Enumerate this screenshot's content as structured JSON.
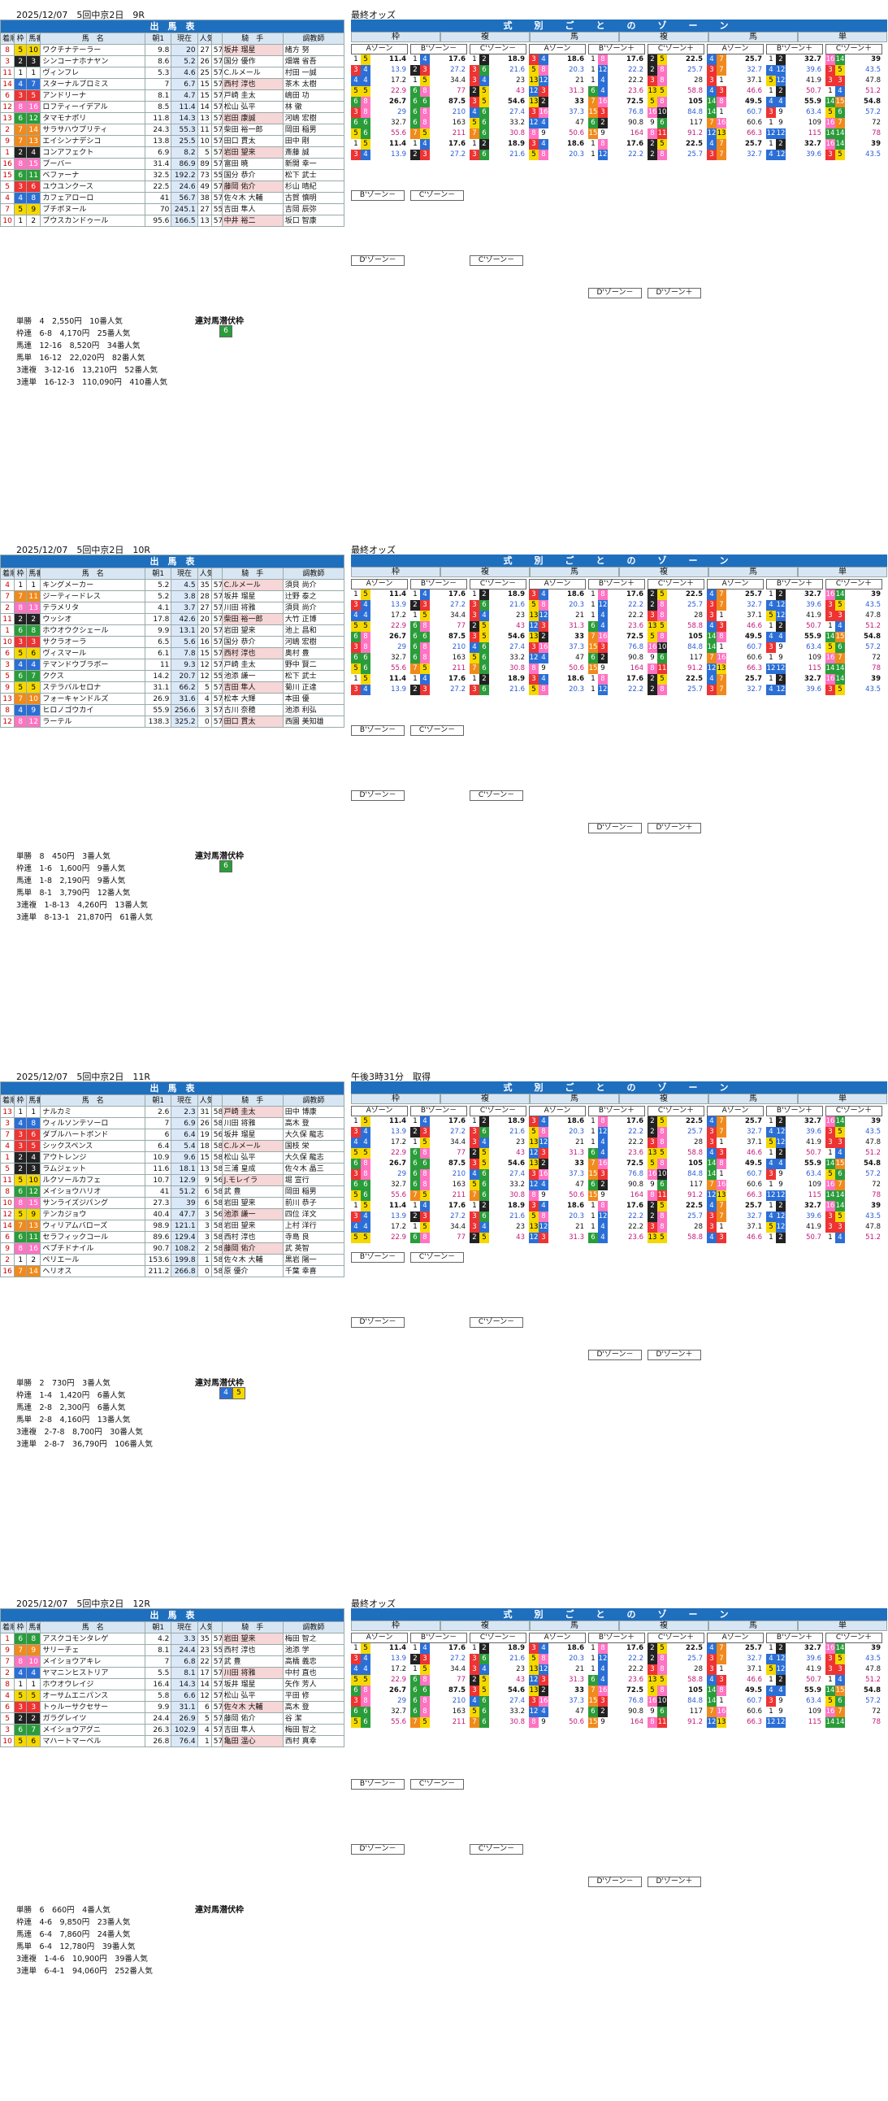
{
  "races": [
    {
      "date_title": "2025/12/07　5回中京2日　9R",
      "right_head": "最終オッズ",
      "entry_title": "出　馬　表",
      "col_labels": {
        "arrive": "着順",
        "frame": "枠",
        "num": "馬番",
        "horse": "馬　名",
        "odds": "単勝オッズ",
        "odds_early": "朝1",
        "odds_now": "現在",
        "pop": "人気",
        "jockey": "騎　手",
        "trainer": "調教師"
      },
      "rows": [
        {
          "arr": "8",
          "f": "5",
          "n": "10",
          "h": "ワクチナテーラー",
          "a": "9.8",
          "b": "20",
          "p": "27",
          "w": "57",
          "j": "坂井 瑠星",
          "t": "緒方 努"
        },
        {
          "arr": "3",
          "f": "2",
          "n": "3",
          "h": "シンコーナホナヤン",
          "a": "8.6",
          "b": "5.2",
          "p": "26",
          "w": "57",
          "j": "国分 優作",
          "t": "畑端 省吾"
        },
        {
          "arr": "11",
          "f": "1",
          "n": "1",
          "h": "ヴィンフレ",
          "a": "5.3",
          "b": "4.6",
          "p": "25",
          "w": "57",
          "j": "C.ルメール",
          "t": "村田 一誠"
        },
        {
          "arr": "14",
          "f": "4",
          "n": "7",
          "h": "スターナルブロミス",
          "a": "7",
          "b": "6.7",
          "p": "15",
          "w": "57",
          "j": "西村 淳也",
          "t": "茶木 太樹"
        },
        {
          "arr": "6",
          "f": "3",
          "n": "5",
          "h": "アンドリーナ",
          "a": "8.1",
          "b": "4.7",
          "p": "15",
          "w": "57",
          "j": "戸崎 圭太",
          "t": "嶋田 功"
        },
        {
          "arr": "12",
          "f": "8",
          "n": "16",
          "h": "ロフティーイデアル",
          "a": "8.5",
          "b": "11.4",
          "p": "14",
          "w": "57",
          "j": "松山 弘平",
          "t": "林 徹"
        },
        {
          "arr": "13",
          "f": "6",
          "n": "12",
          "h": "タマモナポリ",
          "a": "11.8",
          "b": "14.3",
          "p": "13",
          "w": "57",
          "j": "岩田 康誠",
          "t": "河嶋 宏樹"
        },
        {
          "arr": "2",
          "f": "7",
          "n": "14",
          "h": "サラサハウプリティ",
          "a": "24.3",
          "b": "55.3",
          "p": "11",
          "w": "57",
          "j": "柴田 裕一郎",
          "t": "岡田 稲男"
        },
        {
          "arr": "9",
          "f": "7",
          "n": "13",
          "h": "エイシンナデシコ",
          "a": "13.8",
          "b": "25.5",
          "p": "10",
          "w": "57",
          "j": "田口 貫太",
          "t": "田中 剛"
        },
        {
          "arr": "1",
          "f": "2",
          "n": "4",
          "h": "コンアフェクト",
          "a": "6.9",
          "b": "8.2",
          "p": "5",
          "w": "57",
          "j": "岩田 望来",
          "t": "斎藤 誠"
        },
        {
          "arr": "16",
          "f": "8",
          "n": "15",
          "h": "ブーバー",
          "a": "31.4",
          "b": "86.9",
          "p": "89",
          "w": "57",
          "j": "富田 暁",
          "t": "新開 幸一"
        },
        {
          "arr": "15",
          "f": "6",
          "n": "11",
          "h": "ベファーナ",
          "a": "32.5",
          "b": "192.2",
          "p": "73",
          "w": "55",
          "j": "国分 恭介",
          "t": "松下 武士"
        },
        {
          "arr": "5",
          "f": "3",
          "n": "6",
          "h": "ユウユンクース",
          "a": "22.5",
          "b": "24.6",
          "p": "49",
          "w": "57",
          "j": "藤岡 佑介",
          "t": "杉山 晴紀"
        },
        {
          "arr": "4",
          "f": "4",
          "n": "8",
          "h": "カフェアローロ",
          "a": "41",
          "b": "56.7",
          "p": "38",
          "w": "57",
          "j": "佐々木 大輔",
          "t": "古賀 慎明"
        },
        {
          "arr": "7",
          "f": "5",
          "n": "9",
          "h": "ブチボヌール",
          "a": "70",
          "b": "245.1",
          "p": "27",
          "w": "55",
          "j": "吉田 隼人",
          "t": "吉岡 辰弥"
        },
        {
          "arr": "10",
          "f": "1",
          "n": "2",
          "h": "ブウスカンドゥール",
          "a": "95.6",
          "b": "166.5",
          "p": "13",
          "w": "57",
          "j": "中井 裕二",
          "t": "坂口 智康"
        }
      ],
      "results": [
        "単勝　4　2,550円　10番人気",
        "枠連　6-8　4,170円　25番人気",
        "馬連　12-16　8,520円　34番人気",
        "馬単　16-12　22,020円　82番人気",
        "3連複　3-12-16　13,210円　52番人気",
        "3連単　16-12-3　110,090円　410番人気"
      ],
      "bracket_label": "連対馬潜伏枠",
      "bracket_vals": [
        "6"
      ]
    },
    {
      "date_title": "2025/12/07　5回中京2日　10R",
      "right_head": "最終オッズ",
      "entry_title": "出　馬　表",
      "col_labels": {
        "arrive": "着順",
        "frame": "枠",
        "num": "馬番",
        "horse": "馬　名",
        "odds": "単勝オッズ",
        "odds_early": "朝1",
        "odds_now": "現在",
        "pop": "人気",
        "jockey": "騎　手",
        "trainer": "調教師"
      },
      "rows": [
        {
          "arr": "4",
          "f": "1",
          "n": "1",
          "h": "キングメーカー",
          "a": "5.2",
          "b": "4.5",
          "p": "35",
          "w": "57",
          "j": "C.ルメール",
          "t": "須貝 尚介"
        },
        {
          "arr": "7",
          "f": "7",
          "n": "11",
          "h": "ジーティードレス",
          "a": "5.2",
          "b": "3.8",
          "p": "28",
          "w": "57",
          "j": "坂井 瑠星",
          "t": "辻野 泰之"
        },
        {
          "arr": "2",
          "f": "8",
          "n": "13",
          "h": "テラメリタ",
          "a": "4.1",
          "b": "3.7",
          "p": "27",
          "w": "57",
          "j": "川田 将雅",
          "t": "須貝 尚介"
        },
        {
          "arr": "11",
          "f": "2",
          "n": "2",
          "h": "ウッシオ",
          "a": "17.8",
          "b": "42.6",
          "p": "20",
          "w": "57",
          "j": "柴田 裕一郎",
          "t": "大竹 正博"
        },
        {
          "arr": "1",
          "f": "6",
          "n": "8",
          "h": "ホウオウクシェール",
          "a": "9.9",
          "b": "13.1",
          "p": "20",
          "w": "57",
          "j": "岩田 望来",
          "t": "池上 昌和"
        },
        {
          "arr": "10",
          "f": "3",
          "n": "3",
          "h": "サクラオーラ",
          "a": "6.5",
          "b": "5.6",
          "p": "16",
          "w": "57",
          "j": "国分 恭介",
          "t": "河嶋 宏樹"
        },
        {
          "arr": "6",
          "f": "5",
          "n": "6",
          "h": "ヴィスマール",
          "a": "6.1",
          "b": "7.8",
          "p": "15",
          "w": "57",
          "j": "西村 淳也",
          "t": "奥村 豊"
        },
        {
          "arr": "3",
          "f": "4",
          "n": "4",
          "h": "テマンドウブラボー",
          "a": "11",
          "b": "9.3",
          "p": "12",
          "w": "57",
          "j": "戸崎 圭太",
          "t": "野中 賢二"
        },
        {
          "arr": "5",
          "f": "6",
          "n": "7",
          "h": "ククス",
          "a": "14.2",
          "b": "20.7",
          "p": "12",
          "w": "55",
          "j": "池添 謙一",
          "t": "松下 武士"
        },
        {
          "arr": "9",
          "f": "5",
          "n": "5",
          "h": "ステラバルセロナ",
          "a": "31.1",
          "b": "66.2",
          "p": "5",
          "w": "57",
          "j": "吉田 隼人",
          "t": "菊川 正達"
        },
        {
          "arr": "13",
          "f": "7",
          "n": "10",
          "h": "フォーキャンドルズ",
          "a": "26.9",
          "b": "31.6",
          "p": "4",
          "w": "57",
          "j": "松本 大輝",
          "t": "本田 優"
        },
        {
          "arr": "8",
          "f": "4",
          "n": "9",
          "h": "ヒロノゴウカイ",
          "a": "55.9",
          "b": "256.6",
          "p": "3",
          "w": "57",
          "j": "古川 奈穂",
          "t": "池添 利弘"
        },
        {
          "arr": "12",
          "f": "8",
          "n": "12",
          "h": "ラーテル",
          "a": "138.3",
          "b": "325.2",
          "p": "0",
          "w": "57",
          "j": "田口 貫太",
          "t": "西園 美知雄"
        }
      ],
      "results": [
        "単勝　8　450円　3番人気",
        "枠連　1-6　1,600円　9番人気",
        "馬連　1-8　2,190円　9番人気",
        "馬単　8-1　3,790円　12番人気",
        "3連複　1-8-13　4,260円　13番人気",
        "3連単　8-13-1　21,870円　61番人気"
      ],
      "bracket_label": "連対馬潜伏枠",
      "bracket_vals": [
        "6"
      ]
    },
    {
      "date_title": "2025/12/07　5回中京2日　11R",
      "right_head": "午後3時31分　取得",
      "entry_title": "出　馬　表",
      "col_labels": {
        "arrive": "着順",
        "frame": "枠",
        "num": "馬番",
        "horse": "馬　名",
        "odds": "単勝オッズ",
        "odds_early": "朝1",
        "odds_now": "現在",
        "pop": "人気",
        "jockey": "騎　手",
        "trainer": "調教師"
      },
      "rows": [
        {
          "arr": "13",
          "f": "1",
          "n": "1",
          "h": "ナルカミ",
          "a": "2.6",
          "b": "2.3",
          "p": "31",
          "w": "58",
          "j": "戸崎 圭太",
          "t": "田中 博康"
        },
        {
          "arr": "3",
          "f": "4",
          "n": "8",
          "h": "ウィルソンテソーロ",
          "a": "7",
          "b": "6.9",
          "p": "26",
          "w": "58",
          "j": "川田 将雅",
          "t": "高木 登"
        },
        {
          "arr": "7",
          "f": "3",
          "n": "6",
          "h": "ダブルハートボンド",
          "a": "6",
          "b": "6.4",
          "p": "19",
          "w": "56",
          "j": "坂井 瑠星",
          "t": "大久保 龍志"
        },
        {
          "arr": "4",
          "f": "3",
          "n": "5",
          "h": "シックスペンス",
          "a": "6.4",
          "b": "5.4",
          "p": "18",
          "w": "58",
          "j": "C.ルメール",
          "t": "国枝 栄"
        },
        {
          "arr": "1",
          "f": "2",
          "n": "4",
          "h": "アウトレンジ",
          "a": "10.9",
          "b": "9.6",
          "p": "15",
          "w": "58",
          "j": "松山 弘平",
          "t": "大久保 龍志"
        },
        {
          "arr": "5",
          "f": "2",
          "n": "3",
          "h": "ラムジェット",
          "a": "11.6",
          "b": "18.1",
          "p": "13",
          "w": "58",
          "j": "三浦 皇成",
          "t": "佐々木 晶三"
        },
        {
          "arr": "11",
          "f": "5",
          "n": "10",
          "h": "ルクソールカフェ",
          "a": "10.7",
          "b": "12.9",
          "p": "9",
          "w": "56",
          "j": "J.モレイラ",
          "t": "堀 宣行"
        },
        {
          "arr": "8",
          "f": "6",
          "n": "12",
          "h": "メイショウハリオ",
          "a": "41",
          "b": "51.2",
          "p": "6",
          "w": "58",
          "j": "武 豊",
          "t": "岡田 稲男"
        },
        {
          "arr": "10",
          "f": "8",
          "n": "15",
          "h": "サンライズジパング",
          "a": "27.3",
          "b": "39",
          "p": "6",
          "w": "58",
          "j": "岩田 望来",
          "t": "前川 恭子"
        },
        {
          "arr": "12",
          "f": "5",
          "n": "9",
          "h": "テンカジョウ",
          "a": "40.4",
          "b": "47.7",
          "p": "3",
          "w": "56",
          "j": "池添 謙一",
          "t": "四位 洋文"
        },
        {
          "arr": "14",
          "f": "7",
          "n": "13",
          "h": "ウィリアムバローズ",
          "a": "98.9",
          "b": "121.1",
          "p": "3",
          "w": "58",
          "j": "岩田 望来",
          "t": "上村 洋行"
        },
        {
          "arr": "6",
          "f": "6",
          "n": "11",
          "h": "セラフィックコール",
          "a": "89.6",
          "b": "129.4",
          "p": "3",
          "w": "58",
          "j": "西村 淳也",
          "t": "寺島 良"
        },
        {
          "arr": "9",
          "f": "8",
          "n": "16",
          "h": "ペプチドナイル",
          "a": "90.7",
          "b": "108.2",
          "p": "2",
          "w": "58",
          "j": "藤岡 佑介",
          "t": "武 英智"
        },
        {
          "arr": "2",
          "f": "1",
          "n": "2",
          "h": "ペリエール",
          "a": "153.6",
          "b": "199.8",
          "p": "1",
          "w": "58",
          "j": "佐々木 大輔",
          "t": "黒岩 陽一"
        },
        {
          "arr": "16",
          "f": "7",
          "n": "14",
          "h": "ヘリオス",
          "a": "211.2",
          "b": "266.8",
          "p": "0",
          "w": "58",
          "j": "原 優介",
          "t": "千葉 幸喜"
        }
      ],
      "results": [
        "単勝　2　730円　3番人気",
        "枠連　1-4　1,420円　6番人気",
        "馬連　2-8　2,300円　6番人気",
        "馬単　2-8　4,160円　13番人気",
        "3連複　2-7-8　8,700円　30番人気",
        "3連単　2-8-7　36,790円　106番人気"
      ],
      "bracket_label": "連対馬潜伏枠",
      "bracket_vals": [
        "4",
        "5"
      ]
    },
    {
      "date_title": "2025/12/07　5回中京2日　12R",
      "right_head": "最終オッズ",
      "entry_title": "出　馬　表",
      "col_labels": {
        "arrive": "着順",
        "frame": "枠",
        "num": "馬番",
        "horse": "馬　名",
        "odds": "単勝オッズ",
        "odds_early": "朝1",
        "odds_now": "現在",
        "pop": "人気",
        "jockey": "騎　手",
        "trainer": "調教師"
      },
      "rows": [
        {
          "arr": "1",
          "f": "6",
          "n": "8",
          "h": "アスクコモンタレゲ",
          "a": "4.2",
          "b": "3.3",
          "p": "35",
          "w": "57",
          "j": "岩田 望来",
          "t": "梅田 智之"
        },
        {
          "arr": "9",
          "f": "7",
          "n": "9",
          "h": "サリーチェ",
          "a": "8.1",
          "b": "24.4",
          "p": "23",
          "w": "55",
          "j": "西村 淳也",
          "t": "池添 学"
        },
        {
          "arr": "7",
          "f": "8",
          "n": "10",
          "h": "メイショウアキレ",
          "a": "7",
          "b": "6.8",
          "p": "22",
          "w": "57",
          "j": "武 豊",
          "t": "高橋 義忠"
        },
        {
          "arr": "2",
          "f": "4",
          "n": "4",
          "h": "ヤマニンヒストリア",
          "a": "5.5",
          "b": "8.1",
          "p": "17",
          "w": "57",
          "j": "川田 将雅",
          "t": "中村 直也"
        },
        {
          "arr": "8",
          "f": "1",
          "n": "1",
          "h": "ホウオウレイジ",
          "a": "16.4",
          "b": "14.3",
          "p": "14",
          "w": "57",
          "j": "坂井 瑠星",
          "t": "矢作 芳人"
        },
        {
          "arr": "4",
          "f": "5",
          "n": "5",
          "h": "オーサムエニパンス",
          "a": "5.8",
          "b": "6.6",
          "p": "12",
          "w": "57",
          "j": "松山 弘平",
          "t": "平田 修"
        },
        {
          "arr": "6",
          "f": "3",
          "n": "3",
          "h": "トゥルーサクセサー",
          "a": "9.9",
          "b": "31.1",
          "p": "6",
          "w": "57",
          "j": "佐々木 大輔",
          "t": "高木 登"
        },
        {
          "arr": "5",
          "f": "2",
          "n": "2",
          "h": "ガラグレイツ",
          "a": "24.4",
          "b": "26.9",
          "p": "5",
          "w": "57",
          "j": "藤岡 佑介",
          "t": "谷 潔"
        },
        {
          "arr": "3",
          "f": "6",
          "n": "7",
          "h": "メイショウアグニ",
          "a": "26.3",
          "b": "102.9",
          "p": "4",
          "w": "57",
          "j": "吉田 隼人",
          "t": "梅田 智之"
        },
        {
          "arr": "10",
          "f": "5",
          "n": "6",
          "h": "マハートマーベル",
          "a": "26.8",
          "b": "76.4",
          "p": "1",
          "w": "57",
          "j": "亀田 温心",
          "t": "西村 真幸"
        }
      ],
      "results": [
        "単勝　6　660円　4番人気",
        "枠連　4-6　9,850円　23番人気",
        "馬連　6-4　7,860円　24番人気",
        "馬単　6-4　12,780円　39番人気",
        "3連複　1-4-6　10,900円　39番人気",
        "3連単　6-4-1　94,060円　252番人気"
      ],
      "bracket_label": "連対馬潜伏枠",
      "bracket_vals": []
    }
  ],
  "zone": {
    "title": "式　別　ご　と　の　ゾ　ー　ン",
    "groups": [
      "枠",
      "複",
      "馬",
      "複",
      "馬",
      "単"
    ],
    "labels": {
      "a": "Aゾーン",
      "b": "B'ゾーン－",
      "c": "C'ゾーン－",
      "bplus": "B'ゾーン＋",
      "cplus": "C'ゾーン＋",
      "d": "D'ゾーン－",
      "dplus": "D'ゾーン＋"
    },
    "rows_9r": [
      [
        "1",
        "5",
        "11.4",
        "1",
        "4",
        "17.6",
        "1",
        "2",
        "18.9",
        "3",
        "4",
        "18.6",
        "1",
        "8",
        "17.6",
        "2",
        "5",
        "22.5",
        "4",
        "7",
        "25.7",
        "1",
        "2",
        "32.7",
        "16",
        "14",
        "39"
      ],
      [
        "3",
        "4",
        "13.9",
        "2",
        "3",
        "27.2",
        "3",
        "6",
        "21.6",
        "5",
        "8",
        "20.3",
        "1",
        "12",
        "22.2",
        "2",
        "8",
        "25.7",
        "3",
        "7",
        "32.7",
        "4",
        "12",
        "39.6",
        "3",
        "5",
        "43.5"
      ],
      [
        "4",
        "4",
        "17.2",
        "1",
        "5",
        "34.4",
        "3",
        "4",
        "23",
        "13",
        "12",
        "21",
        "1",
        "4",
        "22.2",
        "3",
        "8",
        "28",
        "3",
        "1",
        "37.1",
        "5",
        "12",
        "41.9",
        "3",
        "3",
        "47.8"
      ],
      [
        "5",
        "5",
        "22.9",
        "6",
        "8",
        "77",
        "2",
        "5",
        "43",
        "12",
        "3",
        "31.3",
        "6",
        "4",
        "23.6",
        "13",
        "5",
        "58.8",
        "4",
        "3",
        "46.6",
        "1",
        "2",
        "50.7",
        "1",
        "4",
        "51.2"
      ],
      [
        "6",
        "8",
        "26.7",
        "6",
        "6",
        "87.5",
        "3",
        "5",
        "54.6",
        "13",
        "2",
        "33",
        "7",
        "16",
        "72.5",
        "5",
        "8",
        "105",
        "14",
        "8",
        "49.5",
        "4",
        "4",
        "55.9",
        "14",
        "15",
        "54.8"
      ],
      [
        "3",
        "8",
        "29",
        "6",
        "8",
        "210",
        "4",
        "6",
        "27.4",
        "3",
        "16",
        "37.3",
        "15",
        "3",
        "76.8",
        "16",
        "10",
        "84.8",
        "14",
        "1",
        "60.7",
        "3",
        "9",
        "63.4",
        "5",
        "6",
        "57.2"
      ],
      [
        "6",
        "6",
        "32.7",
        "6",
        "8",
        "163",
        "5",
        "6",
        "33.2",
        "12",
        "4",
        "47",
        "6",
        "2",
        "90.8",
        "9",
        "6",
        "117",
        "7",
        "16",
        "60.6",
        "1",
        "9",
        "109",
        "16",
        "7",
        "72"
      ],
      [
        "5",
        "6",
        "55.6",
        "7",
        "5",
        "211",
        "7",
        "6",
        "30.8",
        "8",
        "9",
        "50.6",
        "15",
        "9",
        "164",
        "8",
        "11",
        "91.2",
        "12",
        "13",
        "66.3",
        "12",
        "12",
        "115",
        "14",
        "14",
        "78"
      ]
    ]
  }
}
